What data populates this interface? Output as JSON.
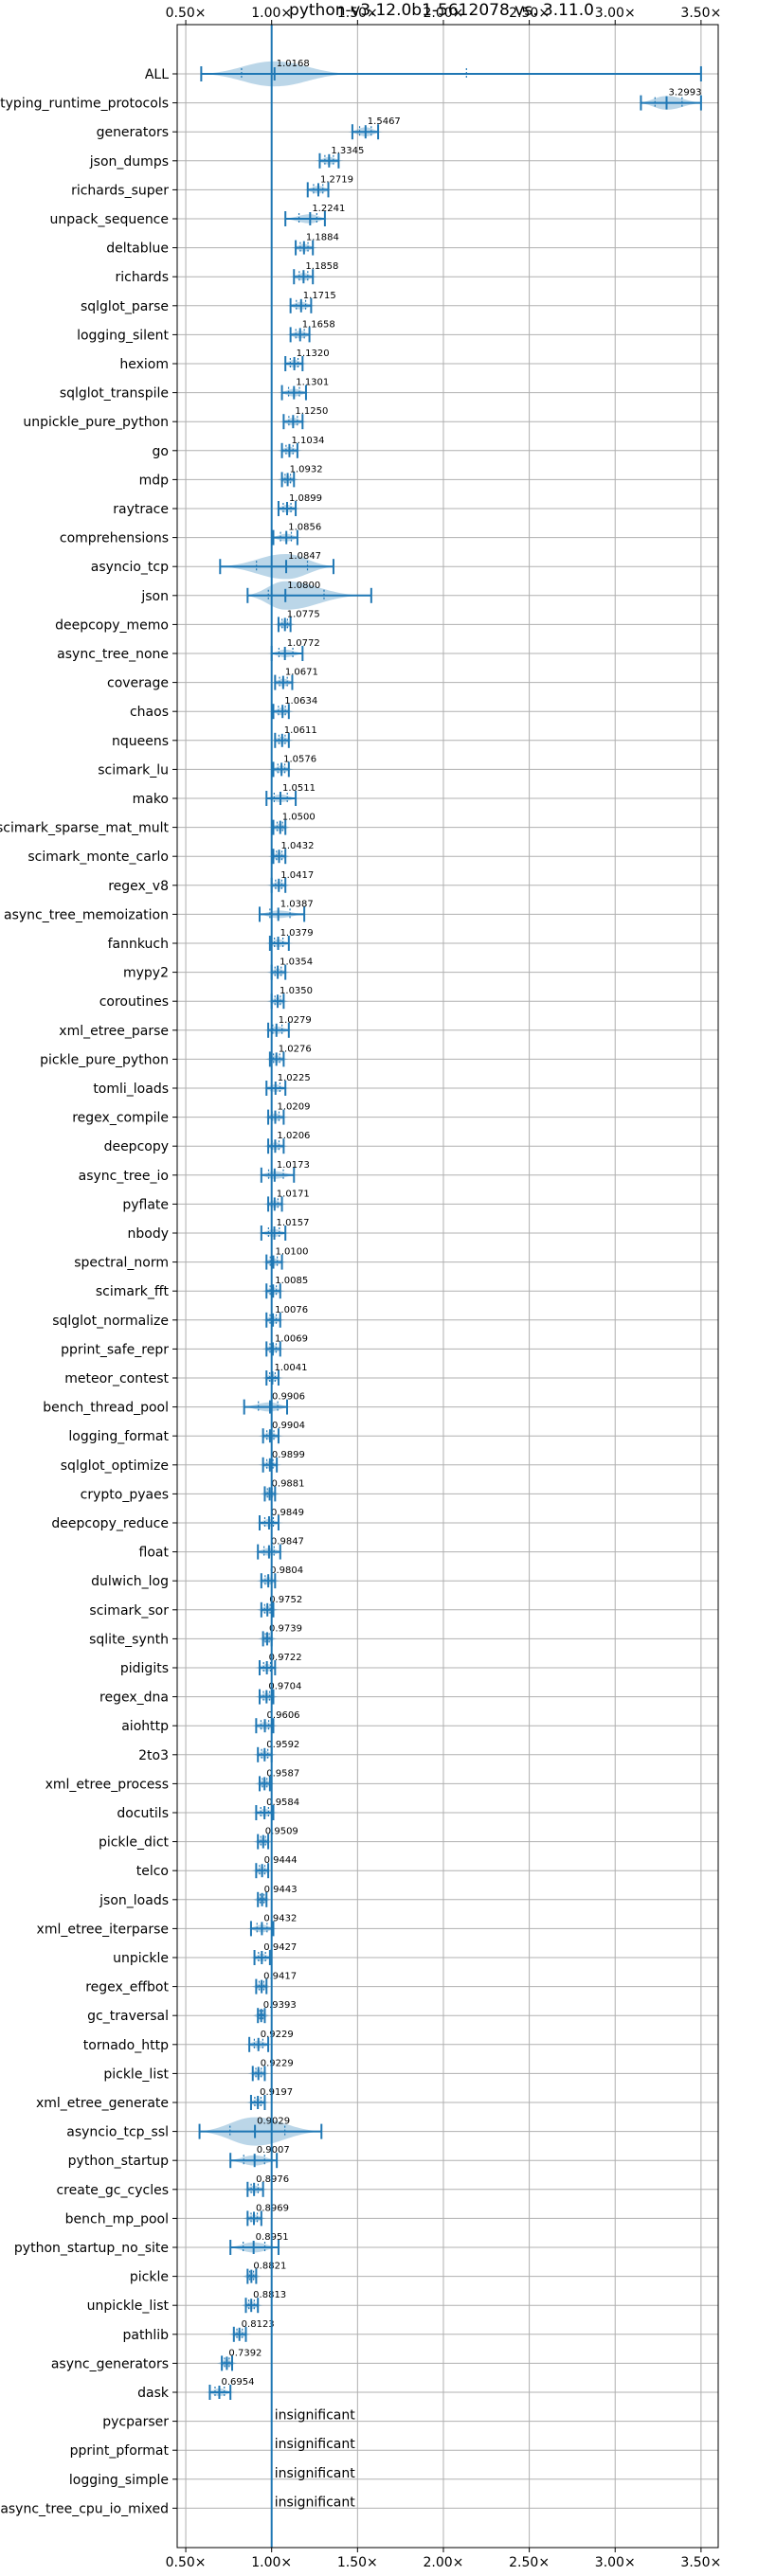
{
  "chart_data": {
    "type": "violin",
    "title": "python-v3.12.0b1-5612078 vs. 3.11.0",
    "xlim": [
      0.45,
      3.6
    ],
    "x_ticks": [
      0.5,
      1.0,
      1.5,
      2.0,
      2.5,
      3.0,
      3.5
    ],
    "x_tick_labels": [
      "0.50×",
      "1.00×",
      "1.50×",
      "2.00×",
      "2.50×",
      "3.00×",
      "3.50×"
    ],
    "reference_line": 1.0,
    "grid": true,
    "rows": [
      {
        "name": "ALL",
        "label": "1.0168",
        "min": 0.59,
        "max": 3.5,
        "width": 0.22
      },
      {
        "name": "typing_runtime_protocols",
        "label": "3.2993",
        "min": 3.15,
        "max": 3.5,
        "width": 0.12
      },
      {
        "name": "generators",
        "label": "1.5467",
        "min": 1.47,
        "max": 1.62,
        "width": 0.08
      },
      {
        "name": "json_dumps",
        "label": "1.3345",
        "min": 1.28,
        "max": 1.39,
        "width": 0.06
      },
      {
        "name": "richards_super",
        "label": "1.2719",
        "min": 1.21,
        "max": 1.33,
        "width": 0.06
      },
      {
        "name": "unpack_sequence",
        "label": "1.2241",
        "min": 1.08,
        "max": 1.31,
        "width": 0.08
      },
      {
        "name": "deltablue",
        "label": "1.1884",
        "min": 1.14,
        "max": 1.24,
        "width": 0.05
      },
      {
        "name": "richards",
        "label": "1.1858",
        "min": 1.13,
        "max": 1.24,
        "width": 0.05
      },
      {
        "name": "sqlglot_parse",
        "label": "1.1715",
        "min": 1.11,
        "max": 1.23,
        "width": 0.05
      },
      {
        "name": "logging_silent",
        "label": "1.1658",
        "min": 1.11,
        "max": 1.22,
        "width": 0.05
      },
      {
        "name": "hexiom",
        "label": "1.1320",
        "min": 1.08,
        "max": 1.18,
        "width": 0.05
      },
      {
        "name": "sqlglot_transpile",
        "label": "1.1301",
        "min": 1.06,
        "max": 1.2,
        "width": 0.05
      },
      {
        "name": "unpickle_pure_python",
        "label": "1.1250",
        "min": 1.07,
        "max": 1.18,
        "width": 0.05
      },
      {
        "name": "go",
        "label": "1.1034",
        "min": 1.06,
        "max": 1.15,
        "width": 0.04
      },
      {
        "name": "mdp",
        "label": "1.0932",
        "min": 1.06,
        "max": 1.13,
        "width": 0.04
      },
      {
        "name": "raytrace",
        "label": "1.0899",
        "min": 1.04,
        "max": 1.14,
        "width": 0.04
      },
      {
        "name": "comprehensions",
        "label": "1.0856",
        "min": 1.01,
        "max": 1.15,
        "width": 0.05
      },
      {
        "name": "asyncio_tcp",
        "label": "1.0847",
        "min": 0.7,
        "max": 1.36,
        "width": 0.22
      },
      {
        "name": "json",
        "label": "1.0800",
        "min": 0.86,
        "max": 1.58,
        "width": 0.25
      },
      {
        "name": "deepcopy_memo",
        "label": "1.0775",
        "min": 1.04,
        "max": 1.11,
        "width": 0.04
      },
      {
        "name": "async_tree_none",
        "label": "1.0772",
        "min": 1.0,
        "max": 1.18,
        "width": 0.05
      },
      {
        "name": "coverage",
        "label": "1.0671",
        "min": 1.02,
        "max": 1.12,
        "width": 0.04
      },
      {
        "name": "chaos",
        "label": "1.0634",
        "min": 1.01,
        "max": 1.1,
        "width": 0.04
      },
      {
        "name": "nqueens",
        "label": "1.0611",
        "min": 1.02,
        "max": 1.1,
        "width": 0.04
      },
      {
        "name": "scimark_lu",
        "label": "1.0576",
        "min": 1.01,
        "max": 1.1,
        "width": 0.04
      },
      {
        "name": "mako",
        "label": "1.0511",
        "min": 0.97,
        "max": 1.14,
        "width": 0.06
      },
      {
        "name": "scimark_sparse_mat_mult",
        "label": "1.0500",
        "min": 1.01,
        "max": 1.08,
        "width": 0.04
      },
      {
        "name": "scimark_monte_carlo",
        "label": "1.0432",
        "min": 1.01,
        "max": 1.08,
        "width": 0.04
      },
      {
        "name": "regex_v8",
        "label": "1.0417",
        "min": 1.0,
        "max": 1.08,
        "width": 0.04
      },
      {
        "name": "async_tree_memoization",
        "label": "1.0387",
        "min": 0.93,
        "max": 1.19,
        "width": 0.06
      },
      {
        "name": "fannkuch",
        "label": "1.0379",
        "min": 0.99,
        "max": 1.1,
        "width": 0.04
      },
      {
        "name": "mypy2",
        "label": "1.0354",
        "min": 1.0,
        "max": 1.08,
        "width": 0.04
      },
      {
        "name": "coroutines",
        "label": "1.0350",
        "min": 1.0,
        "max": 1.07,
        "width": 0.04
      },
      {
        "name": "xml_etree_parse",
        "label": "1.0279",
        "min": 0.98,
        "max": 1.1,
        "width": 0.04
      },
      {
        "name": "pickle_pure_python",
        "label": "1.0276",
        "min": 0.99,
        "max": 1.07,
        "width": 0.04
      },
      {
        "name": "tomli_loads",
        "label": "1.0225",
        "min": 0.97,
        "max": 1.08,
        "width": 0.04
      },
      {
        "name": "regex_compile",
        "label": "1.0209",
        "min": 0.98,
        "max": 1.07,
        "width": 0.04
      },
      {
        "name": "deepcopy",
        "label": "1.0206",
        "min": 0.98,
        "max": 1.07,
        "width": 0.04
      },
      {
        "name": "async_tree_io",
        "label": "1.0173",
        "min": 0.94,
        "max": 1.13,
        "width": 0.05
      },
      {
        "name": "pyflate",
        "label": "1.0171",
        "min": 0.98,
        "max": 1.06,
        "width": 0.04
      },
      {
        "name": "nbody",
        "label": "1.0157",
        "min": 0.94,
        "max": 1.08,
        "width": 0.04
      },
      {
        "name": "spectral_norm",
        "label": "1.0100",
        "min": 0.97,
        "max": 1.06,
        "width": 0.04
      },
      {
        "name": "scimark_fft",
        "label": "1.0085",
        "min": 0.97,
        "max": 1.05,
        "width": 0.04
      },
      {
        "name": "sqlglot_normalize",
        "label": "1.0076",
        "min": 0.97,
        "max": 1.05,
        "width": 0.04
      },
      {
        "name": "pprint_safe_repr",
        "label": "1.0069",
        "min": 0.97,
        "max": 1.05,
        "width": 0.04
      },
      {
        "name": "meteor_contest",
        "label": "1.0041",
        "min": 0.97,
        "max": 1.04,
        "width": 0.04
      },
      {
        "name": "bench_thread_pool",
        "label": "0.9906",
        "min": 0.84,
        "max": 1.09,
        "width": 0.08
      },
      {
        "name": "logging_format",
        "label": "0.9904",
        "min": 0.95,
        "max": 1.04,
        "width": 0.04
      },
      {
        "name": "sqlglot_optimize",
        "label": "0.9899",
        "min": 0.95,
        "max": 1.03,
        "width": 0.04
      },
      {
        "name": "crypto_pyaes",
        "label": "0.9881",
        "min": 0.96,
        "max": 1.02,
        "width": 0.04
      },
      {
        "name": "deepcopy_reduce",
        "label": "0.9849",
        "min": 0.93,
        "max": 1.04,
        "width": 0.04
      },
      {
        "name": "float",
        "label": "0.9847",
        "min": 0.92,
        "max": 1.05,
        "width": 0.05
      },
      {
        "name": "dulwich_log",
        "label": "0.9804",
        "min": 0.94,
        "max": 1.02,
        "width": 0.04
      },
      {
        "name": "scimark_sor",
        "label": "0.9752",
        "min": 0.94,
        "max": 1.01,
        "width": 0.04
      },
      {
        "name": "sqlite_synth",
        "label": "0.9739",
        "min": 0.95,
        "max": 1.0,
        "width": 0.03
      },
      {
        "name": "pidigits",
        "label": "0.9722",
        "min": 0.93,
        "max": 1.02,
        "width": 0.04
      },
      {
        "name": "regex_dna",
        "label": "0.9704",
        "min": 0.93,
        "max": 1.01,
        "width": 0.04
      },
      {
        "name": "aiohttp",
        "label": "0.9606",
        "min": 0.91,
        "max": 1.01,
        "width": 0.04
      },
      {
        "name": "2to3",
        "label": "0.9592",
        "min": 0.92,
        "max": 1.0,
        "width": 0.04
      },
      {
        "name": "xml_etree_process",
        "label": "0.9587",
        "min": 0.93,
        "max": 0.99,
        "width": 0.04
      },
      {
        "name": "docutils",
        "label": "0.9584",
        "min": 0.91,
        "max": 1.01,
        "width": 0.04
      },
      {
        "name": "pickle_dict",
        "label": "0.9509",
        "min": 0.92,
        "max": 0.98,
        "width": 0.04
      },
      {
        "name": "telco",
        "label": "0.9444",
        "min": 0.91,
        "max": 0.98,
        "width": 0.04
      },
      {
        "name": "json_loads",
        "label": "0.9443",
        "min": 0.92,
        "max": 0.97,
        "width": 0.04
      },
      {
        "name": "xml_etree_iterparse",
        "label": "0.9432",
        "min": 0.88,
        "max": 1.01,
        "width": 0.05
      },
      {
        "name": "unpickle",
        "label": "0.9427",
        "min": 0.9,
        "max": 0.99,
        "width": 0.04
      },
      {
        "name": "regex_effbot",
        "label": "0.9417",
        "min": 0.91,
        "max": 0.97,
        "width": 0.04
      },
      {
        "name": "gc_traversal",
        "label": "0.9393",
        "min": 0.92,
        "max": 0.96,
        "width": 0.03
      },
      {
        "name": "tornado_http",
        "label": "0.9229",
        "min": 0.87,
        "max": 0.98,
        "width": 0.04
      },
      {
        "name": "pickle_list",
        "label": "0.9229",
        "min": 0.89,
        "max": 0.96,
        "width": 0.04
      },
      {
        "name": "xml_etree_generate",
        "label": "0.9197",
        "min": 0.88,
        "max": 0.96,
        "width": 0.04
      },
      {
        "name": "asyncio_tcp_ssl",
        "label": "0.9029",
        "min": 0.58,
        "max": 1.29,
        "width": 0.25
      },
      {
        "name": "python_startup",
        "label": "0.9007",
        "min": 0.76,
        "max": 1.03,
        "width": 0.09
      },
      {
        "name": "create_gc_cycles",
        "label": "0.8976",
        "min": 0.86,
        "max": 0.95,
        "width": 0.04
      },
      {
        "name": "bench_mp_pool",
        "label": "0.8969",
        "min": 0.86,
        "max": 0.94,
        "width": 0.04
      },
      {
        "name": "python_startup_no_site",
        "label": "0.8951",
        "min": 0.76,
        "max": 1.04,
        "width": 0.09
      },
      {
        "name": "pickle",
        "label": "0.8821",
        "min": 0.86,
        "max": 0.91,
        "width": 0.03
      },
      {
        "name": "unpickle_list",
        "label": "0.8813",
        "min": 0.85,
        "max": 0.92,
        "width": 0.04
      },
      {
        "name": "pathlib",
        "label": "0.8123",
        "min": 0.78,
        "max": 0.85,
        "width": 0.04
      },
      {
        "name": "async_generators",
        "label": "0.7392",
        "min": 0.71,
        "max": 0.77,
        "width": 0.03
      },
      {
        "name": "dask",
        "label": "0.6954",
        "min": 0.64,
        "max": 0.76,
        "width": 0.05
      },
      {
        "name": "pycparser",
        "label": "insignificant"
      },
      {
        "name": "pprint_pformat",
        "label": "insignificant"
      },
      {
        "name": "logging_simple",
        "label": "insignificant"
      },
      {
        "name": "async_tree_cpu_io_mixed",
        "label": "insignificant"
      }
    ]
  }
}
